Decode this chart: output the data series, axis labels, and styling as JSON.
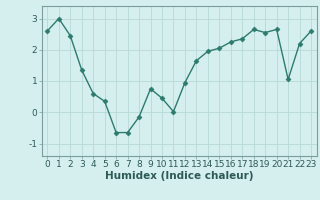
{
  "x": [
    0,
    1,
    2,
    3,
    4,
    5,
    6,
    7,
    8,
    9,
    10,
    11,
    12,
    13,
    14,
    15,
    16,
    17,
    18,
    19,
    20,
    21,
    22,
    23
  ],
  "y": [
    2.6,
    3.0,
    2.45,
    1.35,
    0.6,
    0.35,
    -0.65,
    -0.65,
    -0.15,
    0.75,
    0.45,
    0.02,
    0.95,
    1.65,
    1.95,
    2.05,
    2.25,
    2.35,
    2.65,
    2.55,
    2.65,
    1.05,
    2.2,
    2.6
  ],
  "line_color": "#2d7b6e",
  "marker": "D",
  "marker_size": 2.5,
  "xlabel": "Humidex (Indice chaleur)",
  "xlim": [
    -0.5,
    23.5
  ],
  "ylim": [
    -1.4,
    3.4
  ],
  "yticks": [
    -1,
    0,
    1,
    2,
    3
  ],
  "xticks": [
    0,
    1,
    2,
    3,
    4,
    5,
    6,
    7,
    8,
    9,
    10,
    11,
    12,
    13,
    14,
    15,
    16,
    17,
    18,
    19,
    20,
    21,
    22,
    23
  ],
  "bg_color": "#d5efee",
  "grid_color": "#b8d9d6",
  "spine_color": "#7a9e9b",
  "linewidth": 1.0,
  "xlabel_fontsize": 7.5,
  "tick_fontsize": 6.5
}
